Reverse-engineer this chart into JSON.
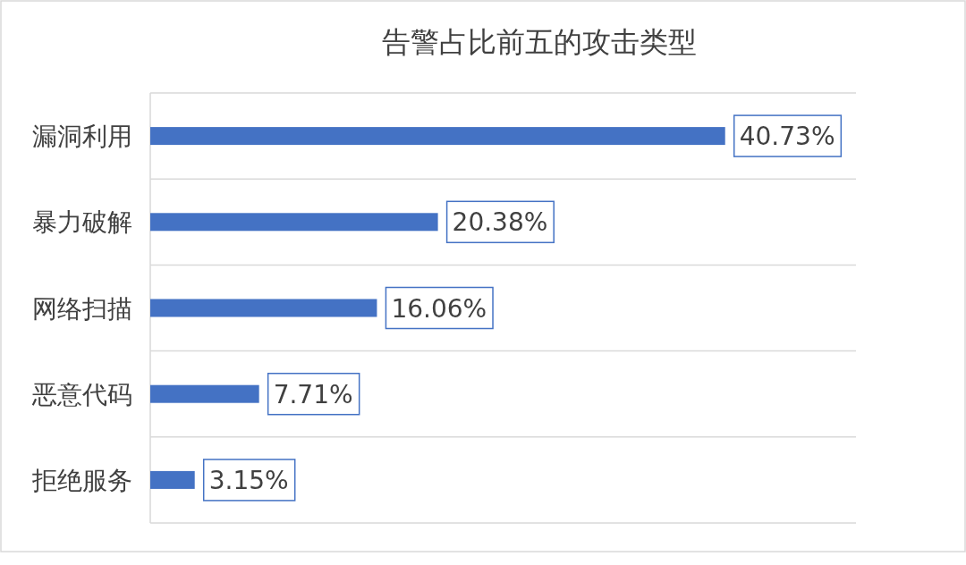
{
  "chart_data": {
    "type": "bar",
    "orientation": "horizontal",
    "title": "告警占比前五的攻击类型",
    "categories": [
      "漏洞利用",
      "暴力破解",
      "网络扫描",
      "恶意代码",
      "拒绝服务"
    ],
    "values": [
      40.73,
      20.38,
      16.06,
      7.71,
      3.15
    ],
    "value_labels": [
      "40.73%",
      "20.38%",
      "16.06%",
      "7.71%",
      "3.15%"
    ],
    "color": "#4472c4",
    "xlim": [
      0,
      50
    ],
    "grid": "y",
    "tick_labels": "y"
  }
}
